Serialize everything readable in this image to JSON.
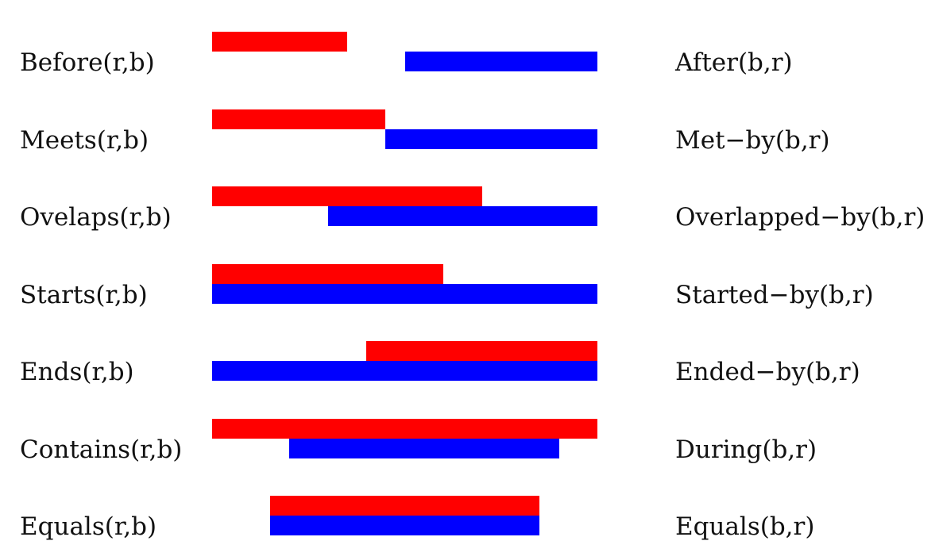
{
  "colors": {
    "r": "#ff0000",
    "b": "#0000ff",
    "background": "#ffffff",
    "text": "#111111"
  },
  "relations": [
    {
      "left_label": "Before(r,b)",
      "right_label": "After(b,r)",
      "r_interval": [
        0.0,
        0.35
      ],
      "b_interval": [
        0.5,
        1.0
      ]
    },
    {
      "left_label": "Meets(r,b)",
      "right_label": "Met−by(b,r)",
      "r_interval": [
        0.0,
        0.45
      ],
      "b_interval": [
        0.45,
        1.0
      ]
    },
    {
      "left_label": "Ovelaps(r,b)",
      "right_label": "Overlapped−by(b,r)",
      "r_interval": [
        0.0,
        0.7
      ],
      "b_interval": [
        0.3,
        1.0
      ]
    },
    {
      "left_label": "Starts(r,b)",
      "right_label": "Started−by(b,r)",
      "r_interval": [
        0.0,
        0.6
      ],
      "b_interval": [
        0.0,
        1.0
      ]
    },
    {
      "left_label": "Ends(r,b)",
      "right_label": "Ended−by(b,r)",
      "r_interval": [
        0.4,
        1.0
      ],
      "b_interval": [
        0.0,
        1.0
      ]
    },
    {
      "left_label": "Contains(r,b)",
      "right_label": "During(b,r)",
      "r_interval": [
        0.0,
        1.0
      ],
      "b_interval": [
        0.2,
        0.9
      ]
    },
    {
      "left_label": "Equals(r,b)",
      "right_label": "Equals(b,r)",
      "r_interval": [
        0.15,
        0.85
      ],
      "b_interval": [
        0.15,
        0.85
      ]
    }
  ]
}
